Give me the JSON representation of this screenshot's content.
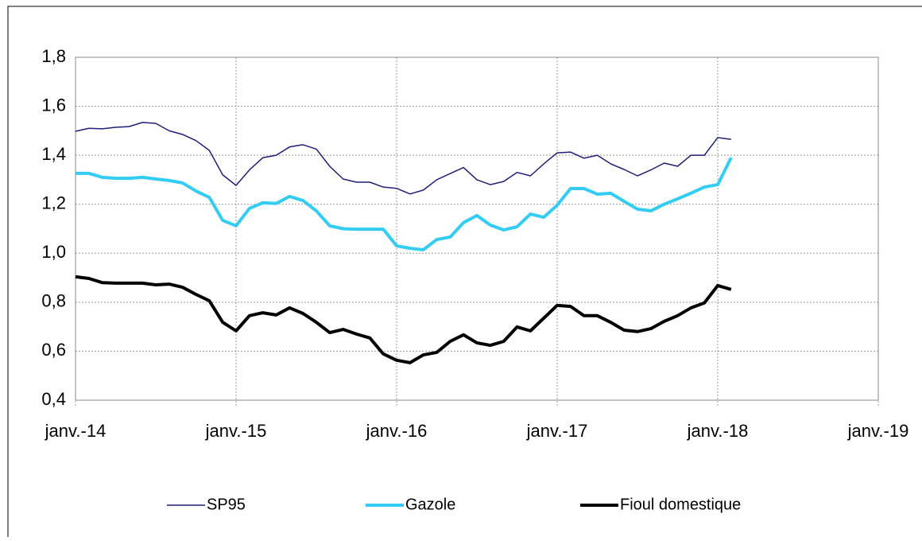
{
  "chart_data": {
    "type": "line",
    "x": [
      0,
      1,
      2,
      3,
      4,
      5,
      6,
      7,
      8,
      9,
      10,
      11,
      12,
      13,
      14,
      15,
      16,
      17,
      18,
      19,
      20,
      21,
      22,
      23,
      24,
      25,
      26,
      27,
      28,
      29,
      30,
      31,
      32,
      33,
      34,
      35,
      36,
      37,
      38,
      39,
      40,
      41,
      42,
      43,
      44,
      45,
      46,
      47,
      48,
      49
    ],
    "xlim": [
      0,
      60
    ],
    "xticks": [
      {
        "value": 0,
        "label": "janv.-14"
      },
      {
        "value": 12,
        "label": "janv.-15"
      },
      {
        "value": 24,
        "label": "janv.-16"
      },
      {
        "value": 36,
        "label": "janv.-17"
      },
      {
        "value": 48,
        "label": "janv.-18"
      },
      {
        "value": 60,
        "label": "janv.-19"
      }
    ],
    "ylim": [
      0.4,
      1.8
    ],
    "yticks": [
      {
        "value": 0.4,
        "label": "0,4"
      },
      {
        "value": 0.6,
        "label": "0,6"
      },
      {
        "value": 0.8,
        "label": "0,8"
      },
      {
        "value": 1.0,
        "label": "1,0"
      },
      {
        "value": 1.2,
        "label": "1,2"
      },
      {
        "value": 1.4,
        "label": "1,4"
      },
      {
        "value": 1.6,
        "label": "1,6"
      },
      {
        "value": 1.8,
        "label": "1,8"
      }
    ],
    "grid": true,
    "legend": "bottom",
    "series": [
      {
        "name": "SP95",
        "color": "#1f1f7a",
        "width": 1.5,
        "values": [
          1.498,
          1.51,
          1.508,
          1.514,
          1.517,
          1.534,
          1.53,
          1.5,
          1.485,
          1.46,
          1.42,
          1.32,
          1.277,
          1.34,
          1.39,
          1.4,
          1.434,
          1.443,
          1.425,
          1.355,
          1.303,
          1.29,
          1.29,
          1.27,
          1.265,
          1.242,
          1.258,
          1.3,
          1.325,
          1.35,
          1.3,
          1.28,
          1.293,
          1.33,
          1.316,
          1.365,
          1.41,
          1.413,
          1.388,
          1.4,
          1.365,
          1.342,
          1.316,
          1.34,
          1.368,
          1.355,
          1.4,
          1.4,
          1.472,
          1.465
        ]
      },
      {
        "name": "Gazole",
        "color": "#33ccf5",
        "width": 4,
        "values": [
          1.326,
          1.326,
          1.31,
          1.306,
          1.306,
          1.31,
          1.303,
          1.297,
          1.287,
          1.254,
          1.228,
          1.134,
          1.112,
          1.183,
          1.206,
          1.203,
          1.232,
          1.215,
          1.173,
          1.112,
          1.1,
          1.098,
          1.098,
          1.098,
          1.03,
          1.02,
          1.014,
          1.056,
          1.066,
          1.125,
          1.154,
          1.115,
          1.095,
          1.108,
          1.16,
          1.147,
          1.196,
          1.264,
          1.264,
          1.241,
          1.245,
          1.212,
          1.18,
          1.173,
          1.2,
          1.222,
          1.245,
          1.27,
          1.28,
          1.39
        ]
      },
      {
        "name": "Fioul domestique",
        "color": "#000000",
        "width": 4,
        "values": [
          0.904,
          0.897,
          0.88,
          0.878,
          0.878,
          0.878,
          0.871,
          0.874,
          0.861,
          0.832,
          0.806,
          0.718,
          0.683,
          0.745,
          0.757,
          0.748,
          0.777,
          0.754,
          0.718,
          0.676,
          0.689,
          0.67,
          0.654,
          0.589,
          0.563,
          0.553,
          0.585,
          0.595,
          0.64,
          0.667,
          0.634,
          0.624,
          0.64,
          0.699,
          0.683,
          0.735,
          0.787,
          0.783,
          0.745,
          0.745,
          0.718,
          0.686,
          0.68,
          0.692,
          0.722,
          0.745,
          0.777,
          0.797,
          0.868,
          0.852
        ]
      }
    ]
  }
}
